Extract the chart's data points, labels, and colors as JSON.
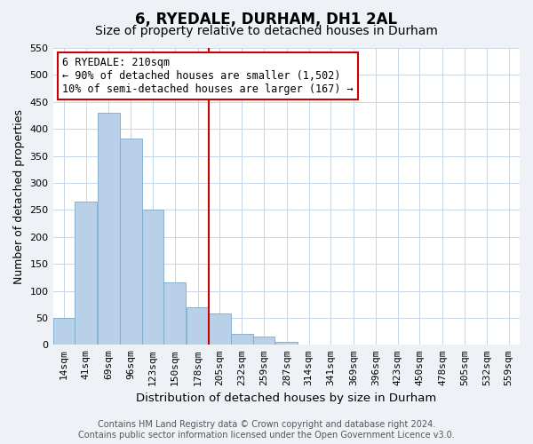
{
  "title": "6, RYEDALE, DURHAM, DH1 2AL",
  "subtitle": "Size of property relative to detached houses in Durham",
  "xlabel": "Distribution of detached houses by size in Durham",
  "ylabel": "Number of detached properties",
  "bin_labels": [
    "14sqm",
    "41sqm",
    "69sqm",
    "96sqm",
    "123sqm",
    "150sqm",
    "178sqm",
    "205sqm",
    "232sqm",
    "259sqm",
    "287sqm",
    "314sqm",
    "341sqm",
    "369sqm",
    "396sqm",
    "423sqm",
    "450sqm",
    "478sqm",
    "505sqm",
    "532sqm",
    "559sqm"
  ],
  "bin_edges": [
    14,
    41,
    69,
    96,
    123,
    150,
    178,
    205,
    232,
    259,
    287,
    314,
    341,
    369,
    396,
    423,
    450,
    478,
    505,
    532,
    559
  ],
  "bar_heights": [
    50,
    265,
    430,
    382,
    250,
    116,
    70,
    58,
    20,
    15,
    5,
    0,
    0,
    0,
    0,
    0,
    0,
    0,
    0,
    0
  ],
  "bar_color": "#b8d0e8",
  "bar_edge_color": "#7aaaca",
  "vline_x_bin_index": 7,
  "vline_color": "#cc0000",
  "ylim": [
    0,
    550
  ],
  "yticks": [
    0,
    50,
    100,
    150,
    200,
    250,
    300,
    350,
    400,
    450,
    500,
    550
  ],
  "ann_line1": "6 RYEDALE: 210sqm",
  "ann_line2": "← 90% of detached houses are smaller (1,502)",
  "ann_line3": "10% of semi-detached houses are larger (167) →",
  "annotation_box_color": "#ffffff",
  "annotation_box_edge": "#cc0000",
  "footer_line1": "Contains HM Land Registry data © Crown copyright and database right 2024.",
  "footer_line2": "Contains public sector information licensed under the Open Government Licence v3.0.",
  "title_fontsize": 12,
  "subtitle_fontsize": 10,
  "xlabel_fontsize": 9.5,
  "ylabel_fontsize": 9,
  "tick_fontsize": 8,
  "annotation_fontsize": 8.5,
  "footer_fontsize": 7,
  "bg_color": "#eef2f7",
  "plot_bg_color": "#ffffff",
  "grid_color": "#c5d5e5"
}
